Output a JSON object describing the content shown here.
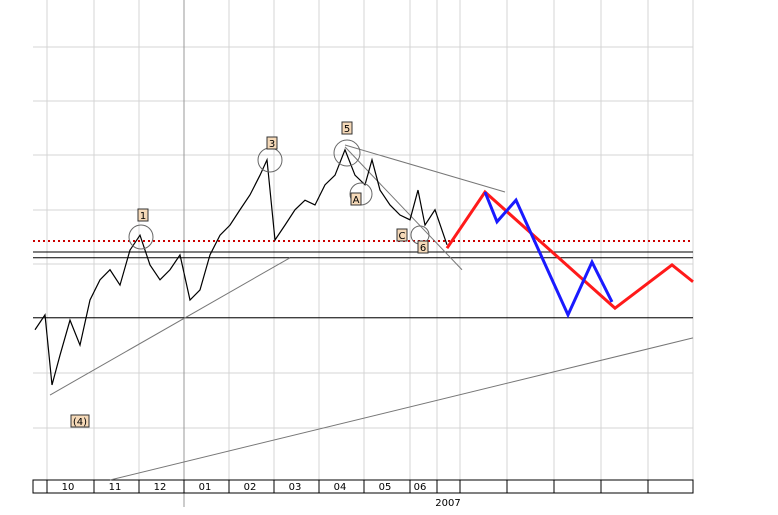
{
  "chart_data": {
    "type": "line",
    "xlim": [
      0,
      66
    ],
    "ylim": [
      0,
      100
    ],
    "categories": [
      "10",
      "11",
      "12",
      "01",
      "02",
      "03",
      "04",
      "05",
      "06"
    ],
    "year_label": "2007",
    "series": [
      {
        "color": "#000000",
        "x": [
          0.2,
          1.2,
          1.9,
          2.7,
          3.7,
          4.7,
          5.7,
          6.7,
          7.7,
          8.7,
          9.7,
          10.7,
          11.7,
          12.7,
          13.7,
          14.7,
          15.7,
          16.7,
          17.7,
          18.7,
          19.7,
          20.7,
          21.7,
          22.7,
          23.4,
          24.2,
          25.2,
          26.2,
          27.2,
          28.2,
          29.2,
          30.2,
          31.2,
          32.2,
          33.2,
          33.9,
          34.7,
          35.7,
          36.7,
          37.7,
          38.5,
          39.2,
          40.2,
          41.4
        ],
        "values": [
          31.3,
          34.4,
          19.8,
          26,
          33.3,
          28.1,
          37.5,
          41.7,
          43.8,
          40.6,
          47.9,
          51,
          44.8,
          41.7,
          43.8,
          46.9,
          37.5,
          39.6,
          46.9,
          51,
          53.1,
          56.3,
          59.4,
          63.5,
          66.7,
          50,
          53.1,
          56.3,
          58.3,
          57.3,
          61.5,
          63.5,
          68.8,
          63.5,
          61.5,
          66.7,
          60.4,
          57.3,
          55.2,
          54.2,
          60.4,
          53.1,
          56.3,
          49
        ]
      },
      {
        "color": "#ff1a1a",
        "x": [
          41.4,
          45.2,
          58.2,
          63.9,
          66
        ],
        "values": [
          48.3,
          60,
          35.8,
          44.8,
          41.3
        ]
      },
      {
        "color": "#1a1aff",
        "x": [
          45.2,
          46.4,
          48.3,
          53.5,
          55.9,
          57.9
        ],
        "values": [
          60,
          53.8,
          58.3,
          34.4,
          45.4,
          37.1
        ]
      }
    ],
    "resistance": {
      "value": 49.8,
      "color": "#cc0000"
    },
    "hlines": [
      47.5,
      46.3,
      33.8
    ],
    "trendlines": [
      [
        [
          1.7,
          17.7
        ],
        [
          25.7,
          46.3
        ]
      ],
      [
        [
          7.7,
          0
        ],
        [
          66,
          29.6
        ]
      ],
      [
        [
          31.2,
          69.8
        ],
        [
          47.2,
          60
        ]
      ],
      [
        [
          31.2,
          69.4
        ],
        [
          42.9,
          43.8
        ]
      ]
    ],
    "wave_labels": [
      "1",
      "3",
      "5",
      "A",
      "C",
      "6",
      "(4)"
    ]
  }
}
